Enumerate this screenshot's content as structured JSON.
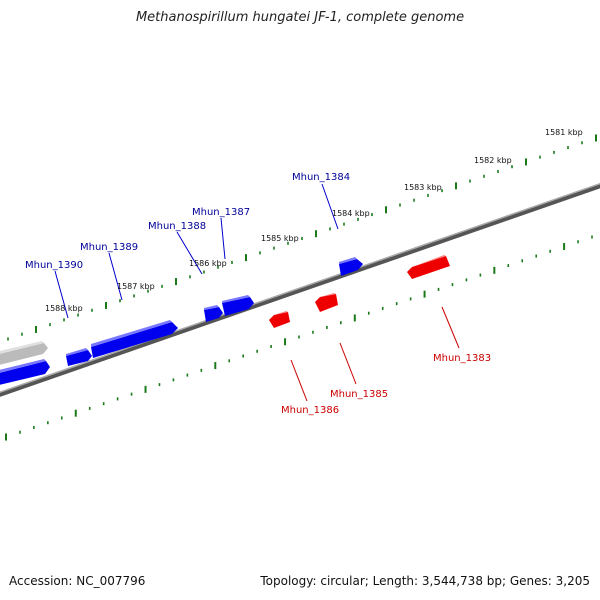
{
  "title": "Methanospirillum hungatei JF-1, complete genome",
  "accession": "Accession: NC_007796",
  "summary": "Topology: circular; Length: 3,544,738 bp; Genes: 3,205",
  "colors": {
    "forward_gene": "#0000ee",
    "reverse_gene": "#ee0000",
    "forward_label": "#000099",
    "reverse_label": "#cc0000",
    "tick": "#1a7a1a",
    "backbone": "#777777"
  },
  "kbp_labels": [
    "1581 kbp",
    "1582 kbp",
    "1583 kbp",
    "1584 kbp",
    "1585 kbp",
    "1586 kbp",
    "1587 kbp",
    "1588 kbp"
  ],
  "gene_labels": {
    "mhun_1384": "Mhun_1384",
    "mhun_1387": "Mhun_1387",
    "mhun_1388": "Mhun_1388",
    "mhun_1389": "Mhun_1389",
    "mhun_1390": "Mhun_1390",
    "mhun_1383": "Mhun_1383",
    "mhun_1385": "Mhun_1385",
    "mhun_1386": "Mhun_1386"
  }
}
